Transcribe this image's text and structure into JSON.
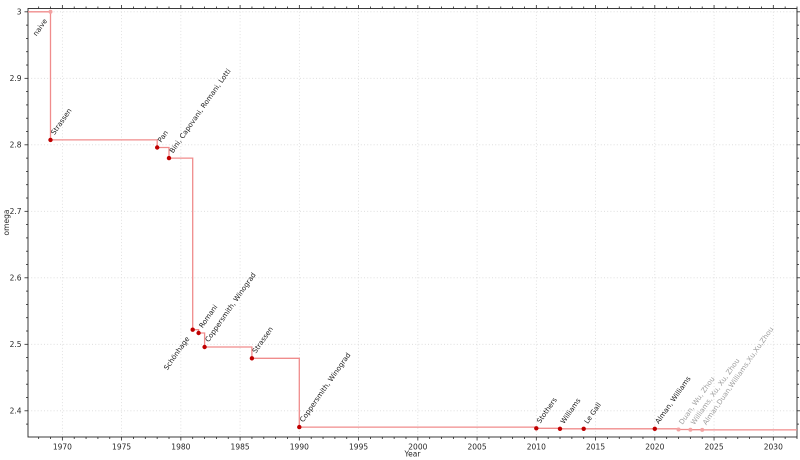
{
  "chart_data": {
    "type": "line",
    "subtype": "step-post",
    "title": "",
    "xlabel": "Year",
    "ylabel": "omega",
    "grid": true,
    "legend": "none",
    "x_range": [
      1967.1,
      2032.0
    ],
    "y_range": [
      2.3606,
      3.005
    ],
    "x_major_ticks": [
      1970,
      1975,
      1980,
      1985,
      1990,
      1995,
      2000,
      2005,
      2010,
      2015,
      2020,
      2025,
      2030
    ],
    "x_minor_step": 1,
    "y_major_ticks": [
      {
        "value": 3.0,
        "label": "3"
      },
      {
        "value": 2.9,
        "label": "2.9"
      },
      {
        "value": 2.8,
        "label": "2.8"
      },
      {
        "value": 2.7,
        "label": "2.7"
      },
      {
        "value": 2.6,
        "label": "2.6"
      },
      {
        "value": 2.5,
        "label": "2.5"
      },
      {
        "value": 2.4,
        "label": "2.4"
      }
    ],
    "y_minor_step": 0.02,
    "points": [
      {
        "year": 1969,
        "omega": 3.0,
        "label": "naive",
        "muted": true,
        "label_placement": "below"
      },
      {
        "year": 1969,
        "omega": 2.8074,
        "label": "Strassen",
        "muted": false,
        "label_placement": "above"
      },
      {
        "year": 1978,
        "omega": 2.796,
        "label": "Pan",
        "muted": false,
        "label_placement": "above"
      },
      {
        "year": 1979,
        "omega": 2.78,
        "label": "Bini, Capovani, Romani, Lotti",
        "muted": false,
        "label_placement": "above"
      },
      {
        "year": 1981,
        "omega": 2.522,
        "label": "Schönhage",
        "muted": false,
        "label_placement": "below"
      },
      {
        "year": 1981.5,
        "omega": 2.517,
        "label": "Romani",
        "muted": false,
        "label_placement": "above"
      },
      {
        "year": 1982,
        "omega": 2.496,
        "label": "Coppersmith, Winograd",
        "muted": false,
        "label_placement": "above"
      },
      {
        "year": 1986,
        "omega": 2.479,
        "label": "Strassen",
        "muted": false,
        "label_placement": "above"
      },
      {
        "year": 1990,
        "omega": 2.3755,
        "label": "Coppersmith, Winograd",
        "muted": false,
        "label_placement": "above"
      },
      {
        "year": 2010,
        "omega": 2.3737,
        "label": "Stothers",
        "muted": false,
        "label_placement": "above"
      },
      {
        "year": 2012,
        "omega": 2.3729,
        "label": "Williams",
        "muted": false,
        "label_placement": "above"
      },
      {
        "year": 2014,
        "omega": 2.3728639,
        "label": "Le Gall",
        "muted": false,
        "label_placement": "above"
      },
      {
        "year": 2020,
        "omega": 2.3728596,
        "label": "Alman, Williams",
        "muted": false,
        "label_placement": "above"
      },
      {
        "year": 2022,
        "omega": 2.371866,
        "label": "Duan, Wu, Zhou",
        "muted": true,
        "label_placement": "above"
      },
      {
        "year": 2023,
        "omega": 2.371552,
        "label": "Williams, Xu, Xu, Zhou",
        "muted": true,
        "label_placement": "above"
      },
      {
        "year": 2024,
        "omega": 2.371339,
        "label": "Alman,Duan,Williams,Xu,Xu,Zhou",
        "muted": true,
        "label_placement": "above"
      }
    ]
  },
  "colors": {
    "background": "#ffffff",
    "line": "#f08c8c",
    "marker": "#c00000",
    "marker_muted": "#f2a3a3",
    "point_label": "#1a1a1a",
    "point_label_muted": "#9e9e9e",
    "grid": "#d9d9d9",
    "axis": "#262626",
    "tick_label": "#262626"
  }
}
